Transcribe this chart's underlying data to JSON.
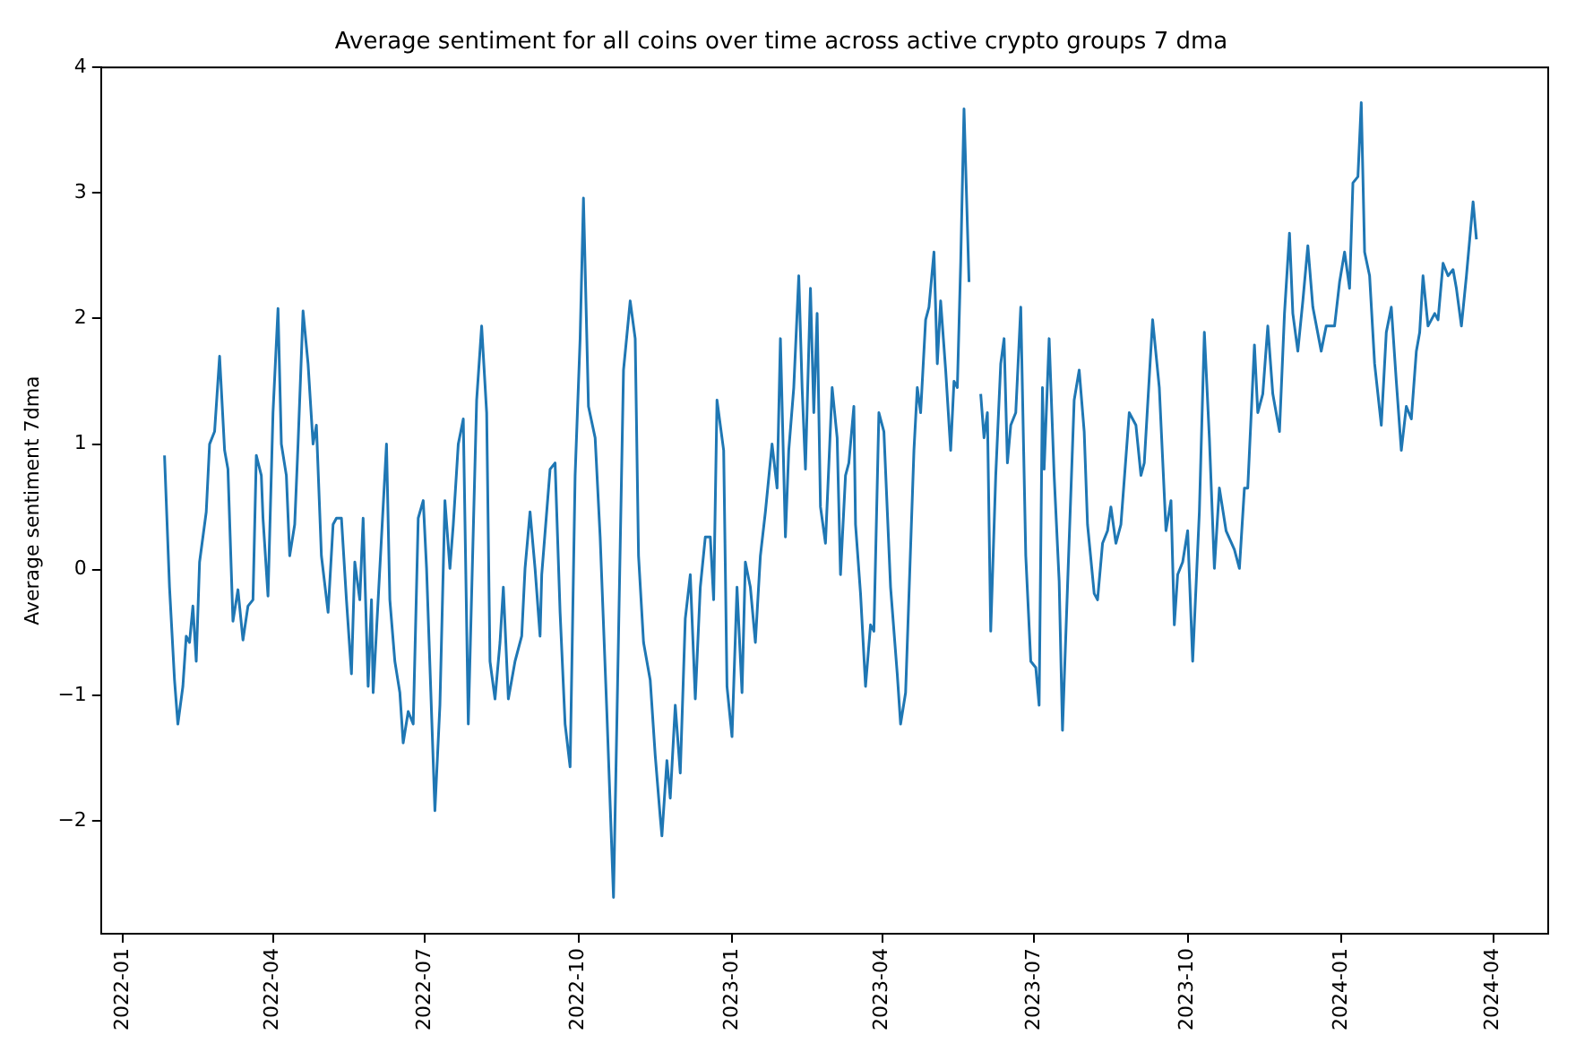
{
  "chart_data": {
    "type": "line",
    "title": "Average sentiment for all coins over time across active crypto groups 7 dma",
    "ylabel": "Average sentiment 7dma",
    "xlim": [
      "2021-12-19",
      "2024-05-04"
    ],
    "ylim": [
      -2.9,
      4
    ],
    "xticks": [
      "2022-01",
      "2022-04",
      "2022-07",
      "2022-10",
      "2023-01",
      "2023-04",
      "2023-07",
      "2023-10",
      "2024-01",
      "2024-04"
    ],
    "yticks": [
      -2,
      -1,
      0,
      1,
      2,
      3,
      4
    ],
    "grid": false,
    "legend": false,
    "marker": "none",
    "line_style": "solid",
    "x": [
      "2022-01-26",
      "2022-01-29",
      "2022-02-01",
      "2022-02-03",
      "2022-02-06",
      "2022-02-08",
      "2022-02-10",
      "2022-02-12",
      "2022-02-14",
      "2022-02-16",
      "2022-02-20",
      "2022-02-22",
      "2022-02-25",
      "2022-02-28",
      "2022-03-03",
      "2022-03-05",
      "2022-03-08",
      "2022-03-11",
      "2022-03-14",
      "2022-03-17",
      "2022-03-20",
      "2022-03-22",
      "2022-03-25",
      "2022-03-26",
      "2022-03-29",
      "2022-04-01",
      "2022-04-04",
      "2022-04-06",
      "2022-04-09",
      "2022-04-11",
      "2022-04-14",
      "2022-04-16",
      "2022-04-19",
      "2022-04-22",
      "2022-04-25",
      "2022-04-27",
      "2022-04-30",
      "2022-05-04",
      "2022-05-07",
      "2022-05-09",
      "2022-05-12",
      "2022-05-15",
      "2022-05-18",
      "2022-05-20",
      "2022-05-23",
      "2022-05-25",
      "2022-05-28",
      "2022-05-30",
      "2022-05-31",
      "2022-06-08",
      "2022-06-10",
      "2022-06-13",
      "2022-06-16",
      "2022-06-18",
      "2022-06-21",
      "2022-06-24",
      "2022-06-27",
      "2022-06-30",
      "2022-07-02",
      "2022-07-07",
      "2022-07-10",
      "2022-07-13",
      "2022-07-16",
      "2022-07-18",
      "2022-07-21",
      "2022-07-24",
      "2022-07-27",
      "2022-08-01",
      "2022-08-04",
      "2022-08-07",
      "2022-08-09",
      "2022-08-12",
      "2022-08-15",
      "2022-08-17",
      "2022-08-20",
      "2022-08-24",
      "2022-08-28",
      "2022-08-30",
      "2022-09-02",
      "2022-09-05",
      "2022-09-08",
      "2022-09-09",
      "2022-09-14",
      "2022-09-17",
      "2022-09-20",
      "2022-09-23",
      "2022-09-26",
      "2022-09-29",
      "2022-10-02",
      "2022-10-04",
      "2022-10-07",
      "2022-10-11",
      "2022-10-14",
      "2022-10-18",
      "2022-10-22",
      "2022-10-25",
      "2022-10-28",
      "2022-11-01",
      "2022-11-04",
      "2022-11-06",
      "2022-11-09",
      "2022-11-13",
      "2022-11-16",
      "2022-11-19",
      "2022-11-20",
      "2022-11-23",
      "2022-11-25",
      "2022-11-28",
      "2022-12-01",
      "2022-12-04",
      "2022-12-07",
      "2022-12-10",
      "2022-12-13",
      "2022-12-16",
      "2022-12-19",
      "2022-12-21",
      "2022-12-23",
      "2022-12-27",
      "2022-12-29",
      "2023-01-01",
      "2023-01-04",
      "2023-01-07",
      "2023-01-09",
      "2023-01-12",
      "2023-01-15",
      "2023-01-18",
      "2023-01-21",
      "2023-01-25",
      "2023-01-28",
      "2023-01-30",
      "2023-02-02",
      "2023-02-04",
      "2023-02-07",
      "2023-02-10",
      "2023-02-12",
      "2023-02-14",
      "2023-02-17",
      "2023-02-19",
      "2023-02-21",
      "2023-02-23",
      "2023-02-26",
      "2023-03-02",
      "2023-03-05",
      "2023-03-07",
      "2023-03-10",
      "2023-03-12",
      "2023-03-15",
      "2023-03-16",
      "2023-03-19",
      "2023-03-22",
      "2023-03-25",
      "2023-03-27",
      "2023-03-30",
      "2023-04-02",
      "2023-04-06",
      "2023-04-10",
      "2023-04-12",
      "2023-04-15",
      "2023-04-20",
      "2023-04-22",
      "2023-04-24",
      "2023-04-27",
      "2023-04-29",
      "2023-05-02",
      "2023-05-04",
      "2023-05-06",
      "2023-05-09",
      "2023-05-12",
      "2023-05-14",
      "2023-05-16",
      "2023-05-18",
      "2023-05-20",
      "2023-05-23",
      "2023-05-26",
      "2023-05-30",
      "2023-06-01",
      "2023-06-03",
      "2023-06-05",
      "2023-06-08",
      "2023-06-11",
      "2023-06-13",
      "2023-06-15",
      "2023-06-17",
      "2023-06-20",
      "2023-06-23",
      "2023-06-26",
      "2023-06-29",
      "2023-07-02",
      "2023-07-04",
      "2023-07-06",
      "2023-07-07",
      "2023-07-10",
      "2023-07-13",
      "2023-07-16",
      "2023-07-18",
      "2023-07-21",
      "2023-07-25",
      "2023-07-28",
      "2023-07-31",
      "2023-08-02",
      "2023-08-06",
      "2023-08-08",
      "2023-08-11",
      "2023-08-14",
      "2023-08-16",
      "2023-08-19",
      "2023-08-22",
      "2023-08-27",
      "2023-08-31",
      "2023-09-03",
      "2023-09-05",
      "2023-09-10",
      "2023-09-14",
      "2023-09-18",
      "2023-09-21",
      "2023-09-23",
      "2023-09-25",
      "2023-09-28",
      "2023-10-01",
      "2023-10-04",
      "2023-10-08",
      "2023-10-11",
      "2023-10-14",
      "2023-10-17",
      "2023-10-20",
      "2023-10-24",
      "2023-10-29",
      "2023-11-01",
      "2023-11-04",
      "2023-11-06",
      "2023-11-10",
      "2023-11-12",
      "2023-11-15",
      "2023-11-18",
      "2023-11-21",
      "2023-11-25",
      "2023-11-28",
      "2023-12-01",
      "2023-12-03",
      "2023-12-06",
      "2023-12-09",
      "2023-12-12",
      "2023-12-15",
      "2023-12-20",
      "2023-12-23",
      "2023-12-28",
      "2023-12-31",
      "2024-01-03",
      "2024-01-06",
      "2024-01-08",
      "2024-01-11",
      "2024-01-13",
      "2024-01-15",
      "2024-01-18",
      "2024-01-21",
      "2024-01-25",
      "2024-01-28",
      "2024-01-31",
      "2024-02-03",
      "2024-02-06",
      "2024-02-09",
      "2024-02-12",
      "2024-02-15",
      "2024-02-17",
      "2024-02-19",
      "2024-02-22",
      "2024-02-26",
      "2024-02-28",
      "2024-03-02",
      "2024-03-05",
      "2024-03-08",
      "2024-03-10",
      "2024-03-13",
      "2024-03-16",
      "2024-03-20",
      "2024-03-22"
    ],
    "series": [
      {
        "color": "#1f77b4",
        "values": [
          0.91,
          -0.14,
          -0.88,
          -1.23,
          -0.93,
          -0.53,
          -0.58,
          -0.29,
          -0.73,
          0.06,
          0.46,
          1.0,
          1.1,
          1.7,
          0.95,
          0.8,
          -0.41,
          -0.16,
          -0.56,
          -0.29,
          -0.24,
          0.91,
          0.75,
          0.41,
          -0.21,
          1.25,
          2.08,
          1.0,
          0.75,
          0.11,
          0.36,
          1.0,
          2.06,
          1.64,
          1.0,
          1.15,
          0.11,
          -0.34,
          0.36,
          0.41,
          0.41,
          -0.24,
          -0.83,
          0.06,
          -0.24,
          0.41,
          -0.93,
          -0.24,
          -0.98,
          1.0,
          -0.24,
          -0.73,
          -0.98,
          -1.38,
          -1.13,
          -1.23,
          0.41,
          0.55,
          0.01,
          -1.92,
          -1.08,
          0.55,
          0.01,
          0.36,
          1.0,
          1.2,
          -1.23,
          1.35,
          1.94,
          1.25,
          -0.73,
          -1.03,
          -0.58,
          -0.14,
          -1.03,
          -0.73,
          -0.53,
          0.01,
          0.46,
          0.01,
          -0.53,
          -0.04,
          0.8,
          0.85,
          -0.34,
          -1.23,
          -1.57,
          0.75,
          1.84,
          2.96,
          1.3,
          1.05,
          0.26,
          -1.13,
          -2.61,
          -0.53,
          1.59,
          2.14,
          1.84,
          0.11,
          -0.58,
          -0.88,
          -1.48,
          -1.97,
          -2.12,
          -1.52,
          -1.82,
          -1.08,
          -1.62,
          -0.39,
          -0.04,
          -1.03,
          -0.14,
          0.26,
          0.26,
          -0.24,
          1.35,
          0.95,
          -0.93,
          -1.33,
          -0.14,
          -0.98,
          0.06,
          -0.14,
          -0.58,
          0.11,
          0.46,
          1.0,
          0.65,
          1.84,
          0.26,
          0.95,
          1.45,
          2.34,
          1.45,
          0.8,
          2.24,
          1.25,
          2.04,
          0.5,
          0.21,
          1.45,
          1.05,
          -0.04,
          0.75,
          0.85,
          1.3,
          0.36,
          -0.19,
          -0.93,
          -0.44,
          -0.49,
          1.25,
          1.1,
          -0.14,
          -0.83,
          -1.23,
          -0.98,
          0.95,
          1.45,
          1.25,
          1.99,
          2.09,
          2.53,
          1.64,
          2.14,
          1.59,
          0.95,
          1.5,
          1.45,
          2.44,
          3.67,
          2.29,
          null,
          1.4,
          1.05,
          1.25,
          -0.49,
          0.75,
          1.64,
          1.84,
          0.85,
          1.15,
          1.25,
          2.09,
          0.11,
          -0.73,
          -0.78,
          -1.08,
          1.45,
          0.8,
          1.84,
          0.75,
          -0.09,
          -1.28,
          -0.14,
          1.35,
          1.59,
          1.1,
          0.36,
          -0.19,
          -0.24,
          0.21,
          0.31,
          0.5,
          0.21,
          0.36,
          1.25,
          1.15,
          0.75,
          0.85,
          1.99,
          1.45,
          0.31,
          0.55,
          -0.44,
          -0.04,
          0.06,
          0.31,
          -0.73,
          0.46,
          1.89,
          1.05,
          0.01,
          0.65,
          0.31,
          0.16,
          0.01,
          0.65,
          0.65,
          1.79,
          1.25,
          1.4,
          1.94,
          1.4,
          1.1,
          2.04,
          2.68,
          2.04,
          1.74,
          2.14,
          2.58,
          2.09,
          1.74,
          1.94,
          1.94,
          2.29,
          2.53,
          2.24,
          3.08,
          3.13,
          3.72,
          2.53,
          2.34,
          1.64,
          1.15,
          1.89,
          2.09,
          1.5,
          0.95,
          1.3,
          1.2,
          1.74,
          1.89,
          2.34,
          1.94,
          2.04,
          1.99,
          2.44,
          2.34,
          2.39,
          2.24,
          1.94,
          2.34,
          2.93,
          2.63
        ]
      }
    ]
  }
}
